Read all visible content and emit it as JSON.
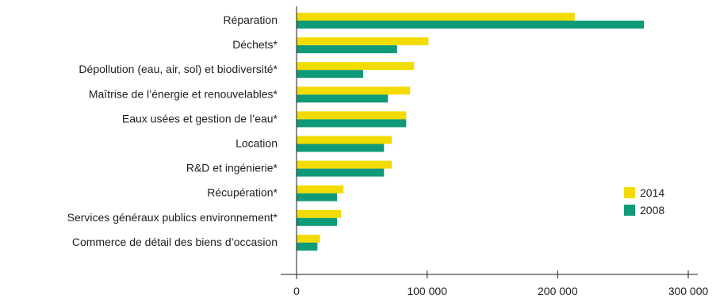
{
  "chart_data": {
    "type": "bar",
    "orientation": "horizontal",
    "title": "",
    "xlabel": "",
    "ylabel": "",
    "categories": [
      "Réparation",
      "Déchets*",
      "Dépollution (eau, air, sol) et biodiversité*",
      "Maîtrise de l’énergie et renouvelables*",
      "Eaux usées et gestion de l’eau*",
      "Location",
      "R&D et ingénierie*",
      "Récupération*",
      "Services généraux publics environnement*",
      "Commerce de détail des biens d’occasion"
    ],
    "series": [
      {
        "name": "2014",
        "color": "#f2dc00",
        "values": [
          213000,
          101000,
          90000,
          87000,
          84000,
          73000,
          73000,
          36000,
          34000,
          18000
        ]
      },
      {
        "name": "2008",
        "color": "#0f9a7a",
        "values": [
          266000,
          77000,
          51000,
          70000,
          84000,
          67000,
          67000,
          31000,
          31000,
          16000
        ]
      }
    ],
    "xlim": [
      0,
      300000
    ],
    "xticks": [
      0,
      100000,
      200000,
      300000
    ],
    "xtick_labels": [
      "0",
      "100 000",
      "200 000",
      "300 000"
    ],
    "grid": false,
    "legend_position": "right"
  }
}
